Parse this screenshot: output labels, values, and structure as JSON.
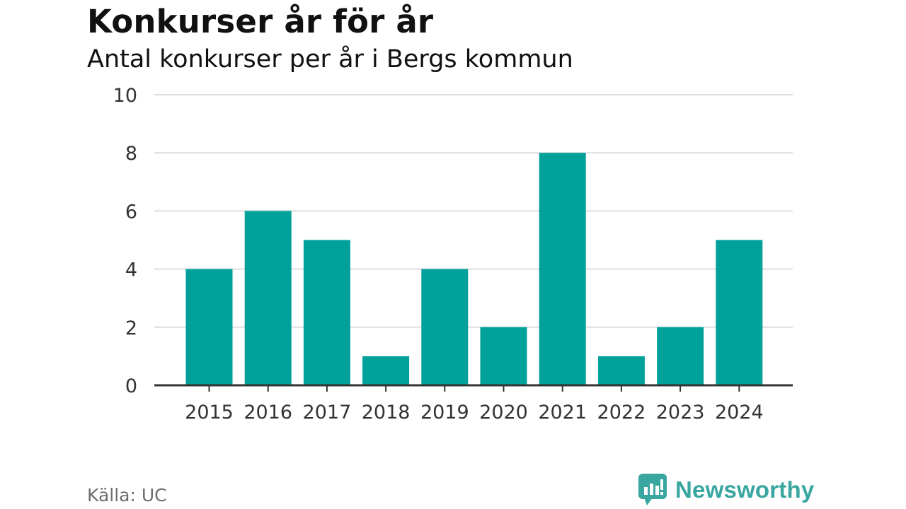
{
  "header": {
    "title": "Konkurser år för år",
    "subtitle": "Antal konkurser per år i Bergs kommun"
  },
  "footer": {
    "source": "Källa: UC",
    "brand": "Newsworthy"
  },
  "colors": {
    "bar": "#00a19a",
    "grid": "#dedede",
    "axis": "#333333",
    "brand": "#3aa6a0"
  },
  "chart_data": {
    "type": "bar",
    "title": "Konkurser år för år",
    "subtitle": "Antal konkurser per år i Bergs kommun",
    "xlabel": "",
    "ylabel": "",
    "categories": [
      "2015",
      "2016",
      "2017",
      "2018",
      "2019",
      "2020",
      "2021",
      "2022",
      "2023",
      "2024"
    ],
    "values": [
      4,
      6,
      5,
      1,
      4,
      2,
      8,
      1,
      2,
      5
    ],
    "ylim": [
      0,
      10
    ],
    "yticks": [
      0,
      2,
      4,
      6,
      8,
      10
    ],
    "grid": true,
    "legend": "none"
  }
}
